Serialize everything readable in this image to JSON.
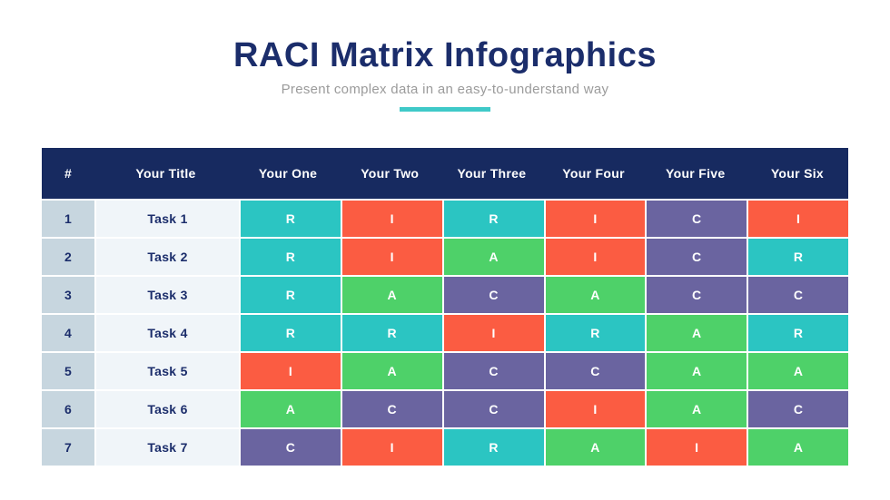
{
  "header": {
    "title": "RACI Matrix Infographics",
    "subtitle": "Present complex data in an easy-to-understand way"
  },
  "colors": {
    "title_navy": "#1b2d6b",
    "subtitle_gray": "#9b9b9b",
    "divider_teal": "#3fc9c8",
    "table_header_bg": "#172a60",
    "table_header_text": "#ffffff",
    "row_number_col_bg": "#c7d6df",
    "task_col_bg": "#f0f5f9",
    "R": "#2bc5c2",
    "A": "#4ed169",
    "C": "#6a64a0",
    "I": "#fb5c42"
  },
  "table": {
    "columns": [
      "#",
      "Your Title",
      "Your One",
      "Your Two",
      "Your Three",
      "Your Four",
      "Your Five",
      "Your Six"
    ],
    "rows": [
      {
        "num": "1",
        "task": "Task 1",
        "cells": [
          "R",
          "I",
          "R",
          "I",
          "C",
          "I"
        ]
      },
      {
        "num": "2",
        "task": "Task 2",
        "cells": [
          "R",
          "I",
          "A",
          "I",
          "C",
          "R"
        ]
      },
      {
        "num": "3",
        "task": "Task 3",
        "cells": [
          "R",
          "A",
          "C",
          "A",
          "C",
          "C"
        ]
      },
      {
        "num": "4",
        "task": "Task 4",
        "cells": [
          "R",
          "R",
          "I",
          "R",
          "A",
          "R"
        ]
      },
      {
        "num": "5",
        "task": "Task 5",
        "cells": [
          "I",
          "A",
          "C",
          "C",
          "A",
          "A"
        ]
      },
      {
        "num": "6",
        "task": "Task 6",
        "cells": [
          "A",
          "C",
          "C",
          "I",
          "A",
          "C"
        ]
      },
      {
        "num": "7",
        "task": "Task 7",
        "cells": [
          "C",
          "I",
          "R",
          "A",
          "I",
          "A"
        ]
      }
    ]
  },
  "chart_data": {
    "type": "table",
    "title": "RACI Matrix Infographics",
    "subtitle": "Present complex data in an easy-to-understand way",
    "columns": [
      "#",
      "Your Title",
      "Your One",
      "Your Two",
      "Your Three",
      "Your Four",
      "Your Five",
      "Your Six"
    ],
    "rows": [
      [
        "1",
        "Task 1",
        "R",
        "I",
        "R",
        "I",
        "C",
        "I"
      ],
      [
        "2",
        "Task 2",
        "R",
        "I",
        "A",
        "I",
        "C",
        "R"
      ],
      [
        "3",
        "Task 3",
        "R",
        "A",
        "C",
        "A",
        "C",
        "C"
      ],
      [
        "4",
        "Task 4",
        "R",
        "R",
        "I",
        "R",
        "A",
        "R"
      ],
      [
        "5",
        "Task 5",
        "I",
        "A",
        "C",
        "C",
        "A",
        "A"
      ],
      [
        "6",
        "Task 6",
        "A",
        "C",
        "C",
        "I",
        "A",
        "C"
      ],
      [
        "7",
        "Task 7",
        "C",
        "I",
        "R",
        "A",
        "I",
        "A"
      ]
    ],
    "cell_color_legend": {
      "R": "#2bc5c2",
      "A": "#4ed169",
      "C": "#6a64a0",
      "I": "#fb5c42"
    }
  }
}
